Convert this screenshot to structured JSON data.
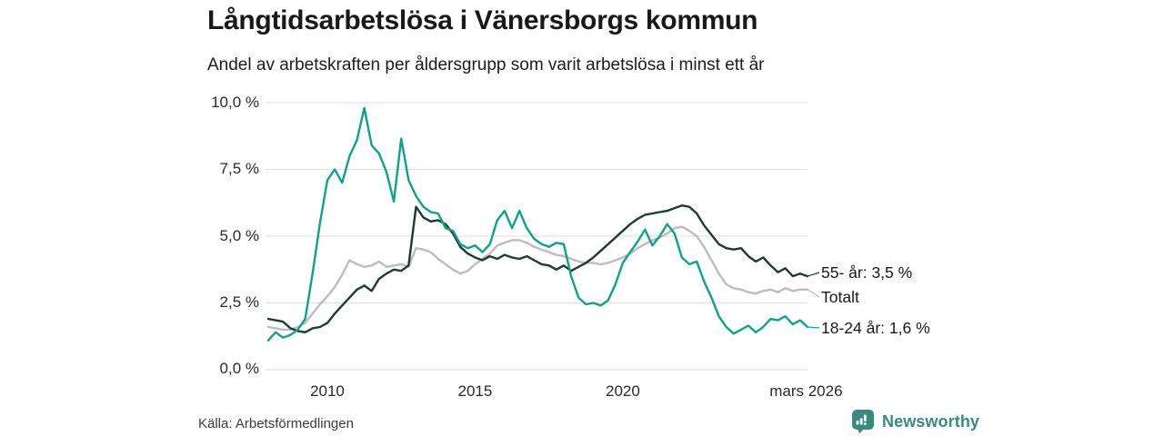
{
  "header": {
    "title": "Långtidsarbetslösa i Vänersborgs kommun",
    "subtitle": "Andel av arbetskraften per åldersgrupp som varit arbetslösa i minst ett år"
  },
  "footer": {
    "source": "Källa: Arbetsförmedlingen",
    "brand": "Newsworthy"
  },
  "colors": {
    "series_55": "#1d3b33",
    "series_total": "#bdbbc4",
    "series_1824": "#13a08a",
    "grid": "#e2e2e2",
    "baseline": "#d8d8d8",
    "brand": "#3a8a80",
    "text": "#191919"
  },
  "chart_data": {
    "type": "line",
    "title": "Långtidsarbetslösa i Vänersborgs kommun",
    "subtitle": "Andel av arbetskraften per åldersgrupp som varit arbetslösa i minst ett år",
    "xlabel": "",
    "ylabel": "",
    "ylim": [
      0,
      10
    ],
    "xlim": [
      2008,
      2026.25
    ],
    "grid": "horizontal",
    "legend_position": "right-end-labels",
    "yticks": [
      0,
      2.5,
      5,
      7.5,
      10
    ],
    "ytick_labels": [
      "0,0 %",
      "2,5 %",
      "5,0 %",
      "7,5 %",
      "10,0 %"
    ],
    "xticks": [
      2010,
      2015,
      2020,
      2026.2
    ],
    "xtick_labels": [
      "2010",
      "2015",
      "2020",
      "mars 2026"
    ],
    "x": [
      2008.0,
      2008.25,
      2008.5,
      2008.75,
      2009.0,
      2009.25,
      2009.5,
      2009.75,
      2010.0,
      2010.25,
      2010.5,
      2010.75,
      2011.0,
      2011.25,
      2011.5,
      2011.75,
      2012.0,
      2012.25,
      2012.5,
      2012.75,
      2013.0,
      2013.25,
      2013.5,
      2013.75,
      2014.0,
      2014.25,
      2014.5,
      2014.75,
      2015.0,
      2015.25,
      2015.5,
      2015.75,
      2016.0,
      2016.25,
      2016.5,
      2016.75,
      2017.0,
      2017.25,
      2017.5,
      2017.75,
      2018.0,
      2018.25,
      2018.5,
      2018.75,
      2019.0,
      2019.25,
      2019.5,
      2019.75,
      2020.0,
      2020.25,
      2020.5,
      2020.75,
      2021.0,
      2021.25,
      2021.5,
      2021.75,
      2022.0,
      2022.25,
      2022.5,
      2022.75,
      2023.0,
      2023.25,
      2023.5,
      2023.75,
      2024.0,
      2024.25,
      2024.5,
      2024.75,
      2025.0,
      2025.25,
      2025.5,
      2025.75,
      2026.0,
      2026.25
    ],
    "series": [
      {
        "name": "55- år",
        "end_label": "55- år: 3,5 %",
        "end_value": "3,5 %",
        "color": "#1d3b33",
        "values": [
          1.9,
          1.85,
          1.8,
          1.55,
          1.45,
          1.4,
          1.55,
          1.6,
          1.75,
          2.1,
          2.4,
          2.7,
          3.0,
          3.15,
          2.95,
          3.4,
          3.6,
          3.75,
          3.7,
          3.9,
          6.1,
          5.7,
          5.55,
          5.6,
          5.45,
          5.1,
          4.6,
          4.35,
          4.2,
          4.1,
          4.25,
          4.15,
          4.3,
          4.2,
          4.15,
          4.25,
          4.1,
          3.95,
          3.9,
          3.75,
          3.9,
          3.7,
          3.85,
          4.0,
          4.2,
          4.45,
          4.7,
          4.95,
          5.2,
          5.45,
          5.65,
          5.8,
          5.85,
          5.9,
          5.95,
          6.05,
          6.15,
          6.1,
          5.85,
          5.4,
          5.05,
          4.7,
          4.55,
          4.5,
          4.55,
          4.25,
          4.05,
          4.2,
          3.9,
          3.65,
          3.8,
          3.5,
          3.6,
          3.5
        ]
      },
      {
        "name": "Totalt",
        "end_label": "Totalt",
        "end_value": "",
        "color": "#bdbbc4",
        "values": [
          1.6,
          1.55,
          1.5,
          1.5,
          1.6,
          1.75,
          2.1,
          2.45,
          2.75,
          3.1,
          3.55,
          4.1,
          3.95,
          3.85,
          3.9,
          4.05,
          3.85,
          3.9,
          3.95,
          3.85,
          4.55,
          4.5,
          4.4,
          4.15,
          3.95,
          3.75,
          3.6,
          3.7,
          3.95,
          4.15,
          4.35,
          4.65,
          4.75,
          4.85,
          4.85,
          4.75,
          4.6,
          4.5,
          4.4,
          4.3,
          4.25,
          4.15,
          4.05,
          4.0,
          4.0,
          3.95,
          4.0,
          4.1,
          4.2,
          4.35,
          4.55,
          4.7,
          4.85,
          4.95,
          5.1,
          5.3,
          5.35,
          5.2,
          5.0,
          4.6,
          4.1,
          3.6,
          3.2,
          3.05,
          3.0,
          2.9,
          2.85,
          2.95,
          3.0,
          2.9,
          3.05,
          2.95,
          3.0,
          3.0
        ]
      },
      {
        "name": "18-24 år",
        "end_label": "18-24 år: 1,6 %",
        "end_value": "1,6 %",
        "color": "#13a08a",
        "values": [
          1.1,
          1.4,
          1.2,
          1.3,
          1.5,
          1.9,
          3.6,
          5.5,
          7.1,
          7.5,
          7.0,
          8.0,
          8.6,
          9.8,
          8.4,
          8.1,
          7.4,
          6.3,
          8.65,
          7.1,
          6.5,
          6.1,
          5.9,
          5.85,
          5.3,
          5.2,
          4.7,
          4.55,
          4.65,
          4.4,
          4.7,
          5.6,
          5.95,
          5.3,
          5.95,
          5.3,
          4.9,
          4.7,
          4.6,
          4.75,
          4.7,
          3.5,
          2.7,
          2.45,
          2.5,
          2.4,
          2.6,
          3.2,
          4.0,
          4.4,
          4.8,
          5.25,
          4.65,
          5.0,
          5.45,
          5.1,
          4.2,
          3.95,
          4.05,
          3.3,
          2.7,
          2.0,
          1.6,
          1.35,
          1.5,
          1.65,
          1.4,
          1.6,
          1.9,
          1.85,
          2.0,
          1.7,
          1.85,
          1.6
        ]
      }
    ]
  }
}
